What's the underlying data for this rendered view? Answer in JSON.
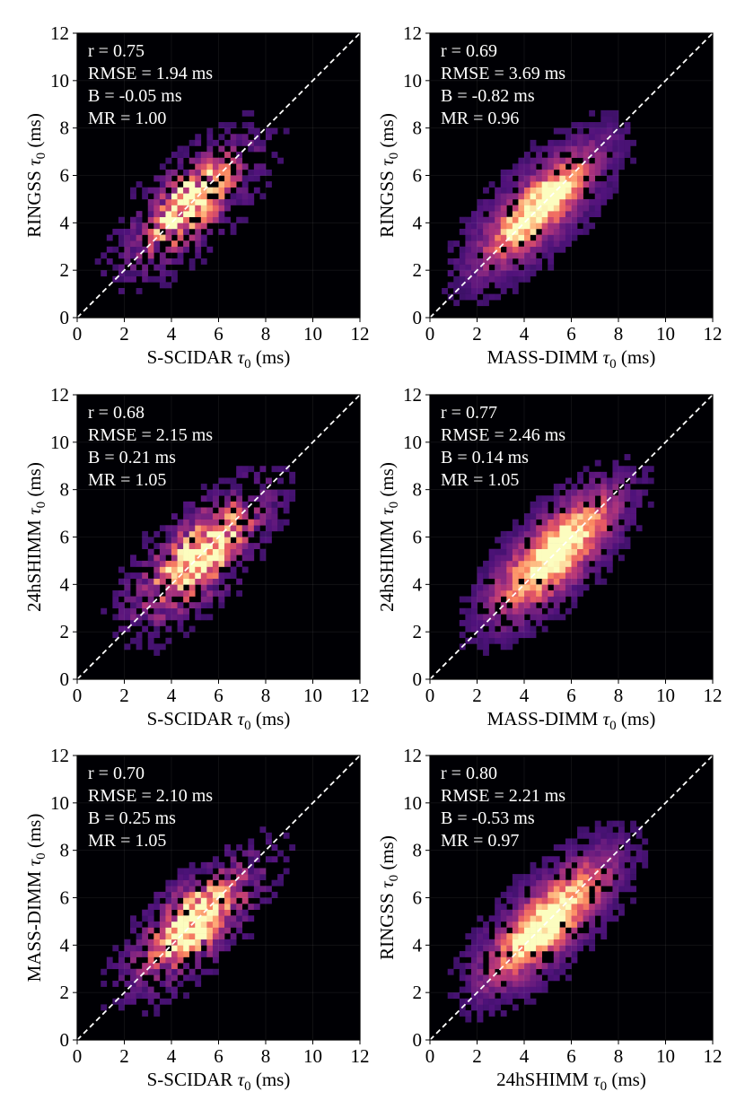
{
  "figure": {
    "colormap": [
      "#000004",
      "#1c1044",
      "#4f127b",
      "#812581",
      "#b5367a",
      "#e55964",
      "#fb8761",
      "#fec287",
      "#fcfdbf"
    ],
    "background_color": "#000004",
    "diagonal_color": "#ffffff"
  },
  "chart_data": [
    {
      "type": "heatmap",
      "xlabel_base": "S-SCIDAR",
      "ylabel_base": "RINGSS",
      "axis_symbol": "τ",
      "axis_subscript": "0",
      "axis_unit": "(ms)",
      "xlim": [
        0,
        12
      ],
      "ylim": [
        0,
        12
      ],
      "xticks": [
        0,
        2,
        4,
        6,
        8,
        10,
        12
      ],
      "yticks": [
        0,
        2,
        4,
        6,
        8,
        10,
        12
      ],
      "stats": [
        "r = 0.75",
        "RMSE = 1.94 ms",
        "B = -0.05 ms",
        "MR = 1.00"
      ],
      "density": {
        "center": [
          4.8,
          4.8
        ],
        "sd_along": 1.3,
        "sd_across": 0.55,
        "tail": 0.15,
        "noise": 0.7,
        "seed": 11
      },
      "identity_line": true
    },
    {
      "type": "heatmap",
      "xlabel_base": "MASS-DIMM",
      "ylabel_base": "RINGSS",
      "axis_symbol": "τ",
      "axis_subscript": "0",
      "axis_unit": "(ms)",
      "xlim": [
        0,
        12
      ],
      "ylim": [
        0,
        12
      ],
      "xticks": [
        0,
        2,
        4,
        6,
        8,
        10,
        12
      ],
      "yticks": [
        0,
        2,
        4,
        6,
        8,
        10,
        12
      ],
      "stats": [
        "r = 0.69",
        "RMSE = 3.69 ms",
        "B = -0.82 ms",
        "MR = 0.96"
      ],
      "density": {
        "center": [
          4.6,
          4.6
        ],
        "sd_along": 1.6,
        "sd_across": 0.5,
        "tail": 0.2,
        "noise": 0.35,
        "seed": 23
      },
      "identity_line": true
    },
    {
      "type": "heatmap",
      "xlabel_base": "S-SCIDAR",
      "ylabel_base": "24hSHIMM",
      "axis_symbol": "τ",
      "axis_subscript": "0",
      "axis_unit": "(ms)",
      "xlim": [
        0,
        12
      ],
      "ylim": [
        0,
        12
      ],
      "xticks": [
        0,
        2,
        4,
        6,
        8,
        10,
        12
      ],
      "yticks": [
        0,
        2,
        4,
        6,
        8,
        10,
        12
      ],
      "stats": [
        "r = 0.68",
        "RMSE = 2.15 ms",
        "B = 0.21 ms",
        "MR = 1.05"
      ],
      "density": {
        "center": [
          5.2,
          5.2
        ],
        "sd_along": 1.5,
        "sd_across": 0.6,
        "tail": 0.18,
        "noise": 0.65,
        "seed": 37
      },
      "identity_line": true
    },
    {
      "type": "heatmap",
      "xlabel_base": "MASS-DIMM",
      "ylabel_base": "24hSHIMM",
      "axis_symbol": "τ",
      "axis_subscript": "0",
      "axis_unit": "(ms)",
      "xlim": [
        0,
        12
      ],
      "ylim": [
        0,
        12
      ],
      "xticks": [
        0,
        2,
        4,
        6,
        8,
        10,
        12
      ],
      "yticks": [
        0,
        2,
        4,
        6,
        8,
        10,
        12
      ],
      "stats": [
        "r = 0.77",
        "RMSE = 2.46 ms",
        "B = 0.14 ms",
        "MR = 1.05"
      ],
      "density": {
        "center": [
          5.3,
          5.3
        ],
        "sd_along": 1.7,
        "sd_across": 0.6,
        "tail": 0.2,
        "noise": 0.35,
        "seed": 41
      },
      "identity_line": true
    },
    {
      "type": "heatmap",
      "xlabel_base": "S-SCIDAR",
      "ylabel_base": "MASS-DIMM",
      "axis_symbol": "τ",
      "axis_subscript": "0",
      "axis_unit": "(ms)",
      "xlim": [
        0,
        12
      ],
      "ylim": [
        0,
        12
      ],
      "xticks": [
        0,
        2,
        4,
        6,
        8,
        10,
        12
      ],
      "yticks": [
        0,
        2,
        4,
        6,
        8,
        10,
        12
      ],
      "stats": [
        "r = 0.70",
        "RMSE = 2.10 ms",
        "B = 0.25 ms",
        "MR = 1.05"
      ],
      "density": {
        "center": [
          5.0,
          5.0
        ],
        "sd_along": 1.4,
        "sd_across": 0.6,
        "tail": 0.16,
        "noise": 0.65,
        "seed": 53
      },
      "identity_line": true
    },
    {
      "type": "heatmap",
      "xlabel_base": "24hSHIMM",
      "ylabel_base": "RINGSS",
      "axis_symbol": "τ",
      "axis_subscript": "0",
      "axis_unit": "(ms)",
      "xlim": [
        0,
        12
      ],
      "ylim": [
        0,
        12
      ],
      "xticks": [
        0,
        2,
        4,
        6,
        8,
        10,
        12
      ],
      "yticks": [
        0,
        2,
        4,
        6,
        8,
        10,
        12
      ],
      "stats": [
        "r = 0.80",
        "RMSE = 2.21 ms",
        "B = -0.53 ms",
        "MR = 0.97"
      ],
      "density": {
        "center": [
          5.0,
          5.0
        ],
        "sd_along": 1.7,
        "sd_across": 0.55,
        "tail": 0.22,
        "noise": 0.35,
        "seed": 67
      },
      "identity_line": true
    }
  ]
}
